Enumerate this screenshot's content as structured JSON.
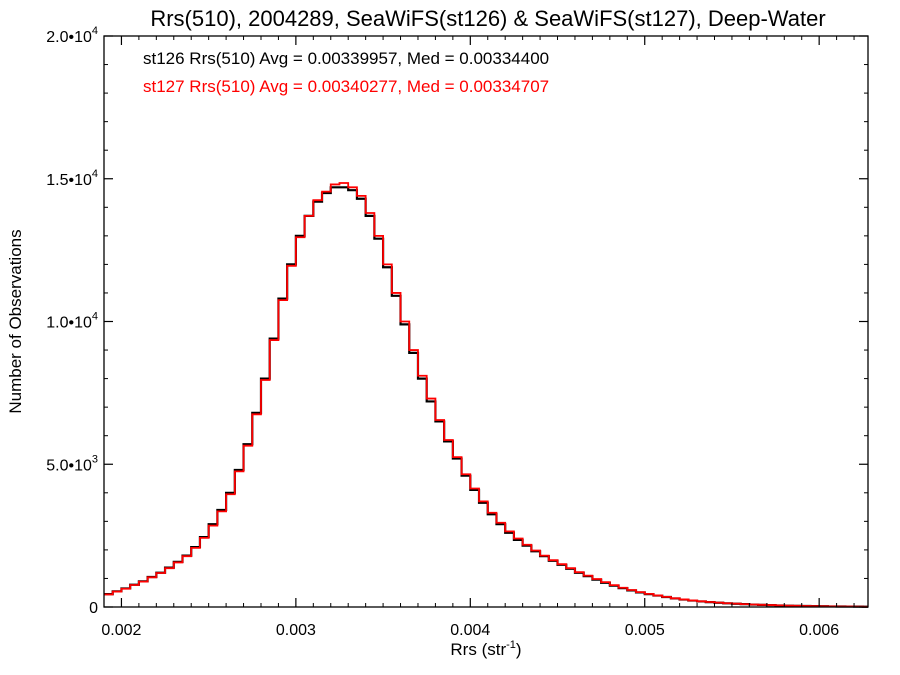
{
  "chart_data": {
    "type": "line",
    "step": true,
    "title": "Rrs(510), 2004289, SeaWiFS(st126) & SeaWiFS(st127), Deep-Water",
    "xlabel": "Rrs (str",
    "xlabel_sup": "-1",
    "xlabel_suffix": ")",
    "ylabel": "Number of Observations",
    "xlim": [
      0.0019,
      0.00628
    ],
    "ylim": [
      0,
      20000
    ],
    "xticks": [
      {
        "value": 0.002,
        "label": "0.002"
      },
      {
        "value": 0.003,
        "label": "0.003"
      },
      {
        "value": 0.004,
        "label": "0.004"
      },
      {
        "value": 0.005,
        "label": "0.005"
      },
      {
        "value": 0.006,
        "label": "0.006"
      }
    ],
    "yticks": [
      {
        "value": 0,
        "mant": "0",
        "exp": ""
      },
      {
        "value": 5000,
        "mant": "5.0•10",
        "exp": "3"
      },
      {
        "value": 10000,
        "mant": "1.0•10",
        "exp": "4"
      },
      {
        "value": 15000,
        "mant": "1.5•10",
        "exp": "4"
      },
      {
        "value": 20000,
        "mant": "2.0•10",
        "exp": "4"
      }
    ],
    "legend": [
      {
        "label": "st126 Rrs(510) Avg = 0.00339957, Med = 0.00334400",
        "color": "#000000"
      },
      {
        "label": "st127 Rrs(510) Avg = 0.00340277, Med = 0.00334707",
        "color": "#ff0000"
      }
    ],
    "legend_position": "top-left",
    "series": [
      {
        "color": "#000000",
        "x": [
          0.0019,
          0.00195,
          0.002,
          0.00205,
          0.0021,
          0.00215,
          0.0022,
          0.00225,
          0.0023,
          0.00235,
          0.0024,
          0.00245,
          0.0025,
          0.00255,
          0.0026,
          0.00265,
          0.0027,
          0.00275,
          0.0028,
          0.00285,
          0.0029,
          0.00295,
          0.003,
          0.00305,
          0.0031,
          0.00315,
          0.0032,
          0.00325,
          0.0033,
          0.00335,
          0.0034,
          0.00345,
          0.0035,
          0.00355,
          0.0036,
          0.00365,
          0.0037,
          0.00375,
          0.0038,
          0.00385,
          0.0039,
          0.00395,
          0.004,
          0.00405,
          0.0041,
          0.00415,
          0.0042,
          0.00425,
          0.0043,
          0.00435,
          0.0044,
          0.00445,
          0.0045,
          0.00455,
          0.0046,
          0.00465,
          0.0047,
          0.00475,
          0.0048,
          0.00485,
          0.0049,
          0.00495,
          0.005,
          0.00505,
          0.0051,
          0.00515,
          0.0052,
          0.00525,
          0.0053,
          0.00535,
          0.0054,
          0.00545,
          0.0055,
          0.00555,
          0.0056,
          0.00565,
          0.0057,
          0.00575,
          0.0058,
          0.00585,
          0.0059,
          0.00595,
          0.006,
          0.00605,
          0.0061,
          0.00615,
          0.0062,
          0.00625
        ],
        "values": [
          450,
          550,
          650,
          780,
          900,
          1050,
          1200,
          1380,
          1580,
          1800,
          2100,
          2450,
          2900,
          3400,
          4000,
          4800,
          5700,
          6800,
          8000,
          9400,
          10800,
          12000,
          13000,
          13700,
          14200,
          14500,
          14700,
          14700,
          14600,
          14300,
          13700,
          12900,
          11900,
          10900,
          9900,
          8900,
          8000,
          7200,
          6500,
          5800,
          5200,
          4600,
          4100,
          3650,
          3250,
          2900,
          2600,
          2350,
          2150,
          1950,
          1780,
          1620,
          1480,
          1340,
          1200,
          1080,
          960,
          850,
          750,
          660,
          580,
          510,
          450,
          400,
          350,
          300,
          260,
          225,
          195,
          170,
          150,
          130,
          115,
          100,
          85,
          75,
          65,
          55,
          45,
          40,
          35,
          30,
          25,
          20,
          18,
          15,
          12,
          10
        ]
      },
      {
        "color": "#ff0000",
        "x": [
          0.0019,
          0.00195,
          0.002,
          0.00205,
          0.0021,
          0.00215,
          0.0022,
          0.00225,
          0.0023,
          0.00235,
          0.0024,
          0.00245,
          0.0025,
          0.00255,
          0.0026,
          0.00265,
          0.0027,
          0.00275,
          0.0028,
          0.00285,
          0.0029,
          0.00295,
          0.003,
          0.00305,
          0.0031,
          0.00315,
          0.0032,
          0.00325,
          0.0033,
          0.00335,
          0.0034,
          0.00345,
          0.0035,
          0.00355,
          0.0036,
          0.00365,
          0.0037,
          0.00375,
          0.0038,
          0.00385,
          0.0039,
          0.00395,
          0.004,
          0.00405,
          0.0041,
          0.00415,
          0.0042,
          0.00425,
          0.0043,
          0.00435,
          0.0044,
          0.00445,
          0.0045,
          0.00455,
          0.0046,
          0.00465,
          0.0047,
          0.00475,
          0.0048,
          0.00485,
          0.0049,
          0.00495,
          0.005,
          0.00505,
          0.0051,
          0.00515,
          0.0052,
          0.00525,
          0.0053,
          0.00535,
          0.0054,
          0.00545,
          0.0055,
          0.00555,
          0.0056,
          0.00565,
          0.0057,
          0.00575,
          0.0058,
          0.00585,
          0.0059,
          0.00595,
          0.006,
          0.00605,
          0.0061,
          0.00615,
          0.0062,
          0.00625
        ],
        "values": [
          440,
          540,
          640,
          770,
          890,
          1040,
          1190,
          1360,
          1560,
          1780,
          2070,
          2420,
          2850,
          3350,
          3950,
          4750,
          5650,
          6750,
          7950,
          9350,
          10750,
          11950,
          12950,
          13700,
          14250,
          14550,
          14800,
          14850,
          14700,
          14400,
          13800,
          13000,
          12000,
          11000,
          10000,
          9000,
          8100,
          7300,
          6550,
          5850,
          5250,
          4650,
          4150,
          3700,
          3300,
          2950,
          2650,
          2400,
          2180,
          1980,
          1800,
          1640,
          1500,
          1360,
          1220,
          1100,
          980,
          870,
          765,
          675,
          595,
          520,
          460,
          405,
          355,
          305,
          265,
          230,
          200,
          175,
          152,
          132,
          117,
          102,
          88,
          77,
          67,
          57,
          47,
          41,
          36,
          31,
          26,
          21,
          18,
          15,
          12,
          10
        ]
      }
    ]
  }
}
